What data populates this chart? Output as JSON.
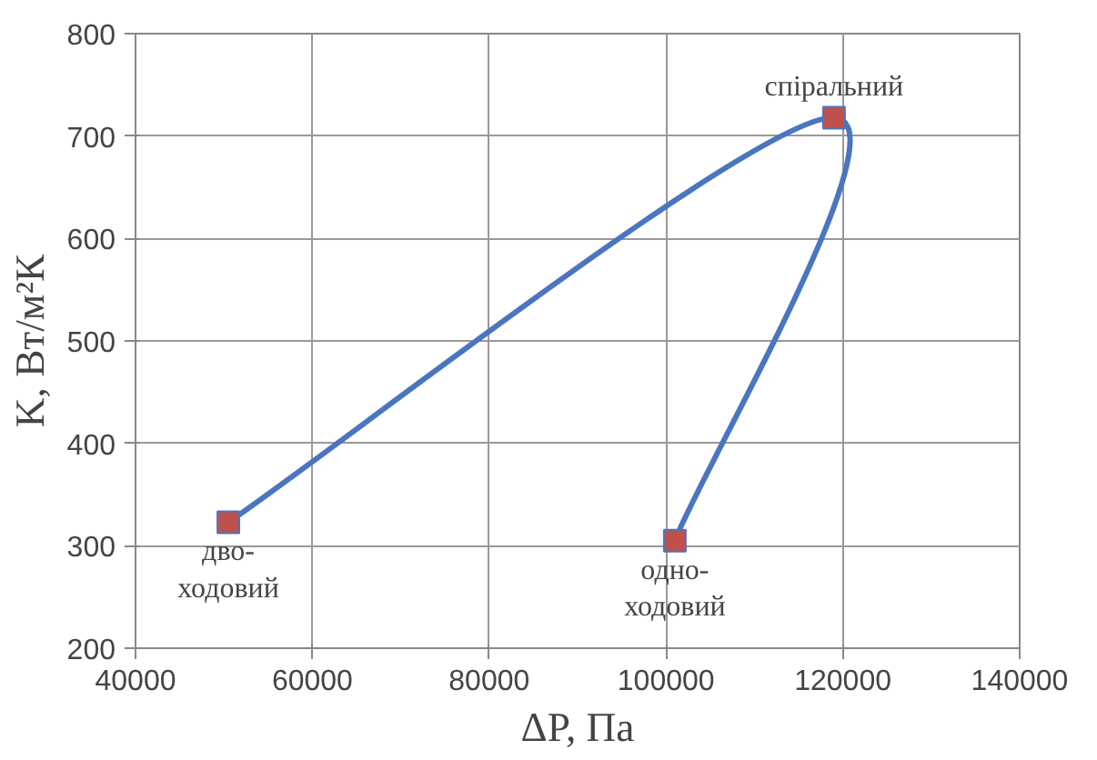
{
  "chart_data": {
    "type": "line",
    "xlabel": "ΔP, Па",
    "ylabel": "K, Вт/м²К",
    "x": [
      50500,
      119000,
      101000
    ],
    "series": [
      {
        "color": "#4a76c0",
        "values": [
          323,
          718,
          305
        ]
      }
    ],
    "marker": "square",
    "line_style": "solid",
    "grid": true,
    "xlim": [
      40000,
      140000
    ],
    "xticks": [
      40000,
      60000,
      80000,
      100000,
      120000,
      140000
    ],
    "ylim": [
      200,
      800
    ],
    "yticks": [
      200,
      300,
      400,
      500,
      600,
      700,
      800
    ],
    "annotations": [
      {
        "text": "дво-\nходовий",
        "x": 50500,
        "y": 323
      },
      {
        "text": "спіральний",
        "x": 119000,
        "y": 718
      },
      {
        "text": "одно-\nходовий",
        "x": 101000,
        "y": 305
      }
    ]
  }
}
